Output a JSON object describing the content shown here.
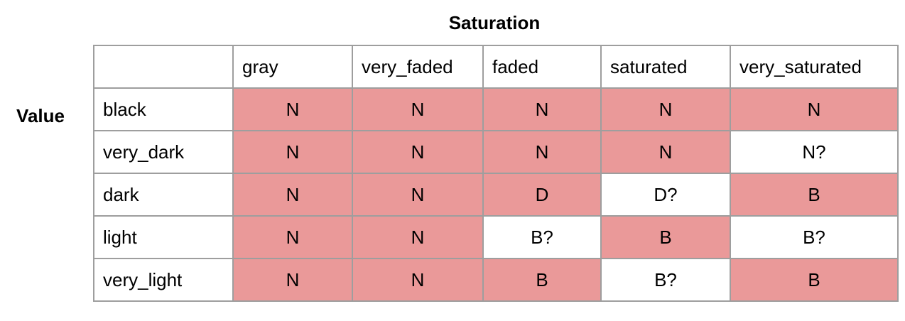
{
  "column_axis_title": "Saturation",
  "row_axis_title": "Value",
  "highlight_color": "#ea9999",
  "columns": [
    "",
    "gray",
    "very_faded",
    "faded",
    "saturated",
    "very_saturated"
  ],
  "rows": [
    {
      "label": "black",
      "cells": [
        {
          "text": "N",
          "highlighted": true
        },
        {
          "text": "N",
          "highlighted": true
        },
        {
          "text": "N",
          "highlighted": true
        },
        {
          "text": "N",
          "highlighted": true
        },
        {
          "text": "N",
          "highlighted": true
        }
      ]
    },
    {
      "label": "very_dark",
      "cells": [
        {
          "text": "N",
          "highlighted": true
        },
        {
          "text": "N",
          "highlighted": true
        },
        {
          "text": "N",
          "highlighted": true
        },
        {
          "text": "N",
          "highlighted": true
        },
        {
          "text": "N?",
          "highlighted": false
        }
      ]
    },
    {
      "label": "dark",
      "cells": [
        {
          "text": "N",
          "highlighted": true
        },
        {
          "text": "N",
          "highlighted": true
        },
        {
          "text": "D",
          "highlighted": true
        },
        {
          "text": "D?",
          "highlighted": false
        },
        {
          "text": "B",
          "highlighted": true
        }
      ]
    },
    {
      "label": "light",
      "cells": [
        {
          "text": "N",
          "highlighted": true
        },
        {
          "text": "N",
          "highlighted": true
        },
        {
          "text": "B?",
          "highlighted": false
        },
        {
          "text": "B",
          "highlighted": true
        },
        {
          "text": "B?",
          "highlighted": false
        }
      ]
    },
    {
      "label": "very_light",
      "cells": [
        {
          "text": "N",
          "highlighted": true
        },
        {
          "text": "N",
          "highlighted": true
        },
        {
          "text": "B",
          "highlighted": true
        },
        {
          "text": "B?",
          "highlighted": false
        },
        {
          "text": "B",
          "highlighted": true
        }
      ]
    }
  ]
}
